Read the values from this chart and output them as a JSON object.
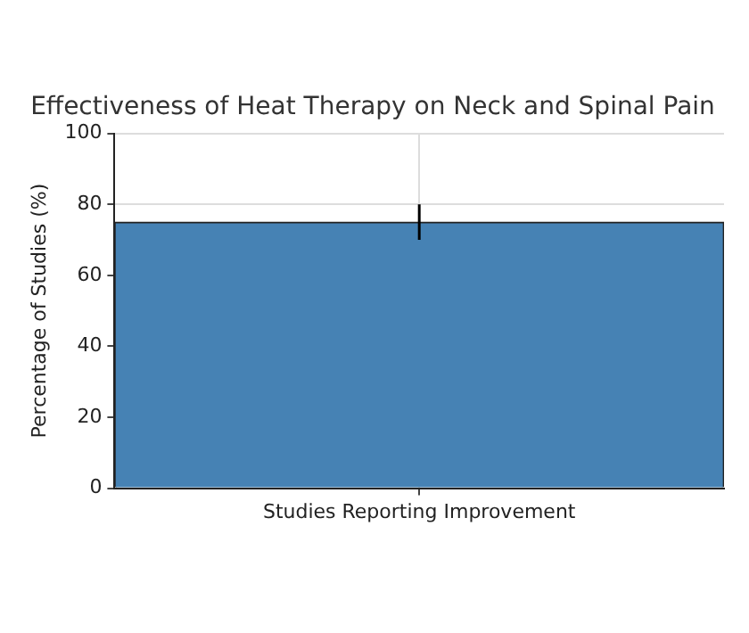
{
  "chart_data": {
    "type": "bar",
    "title": "Effectiveness of Heat Therapy on Neck and Spinal Pain",
    "ylabel": "Percentage of Studies (%)",
    "categories": [
      "Studies Reporting Improvement"
    ],
    "values": [
      75
    ],
    "errors": [
      5
    ],
    "color": "#4682b4",
    "ylim": [
      0,
      100
    ],
    "yticks": [
      0,
      20,
      40,
      60,
      80,
      100
    ],
    "grid": true
  }
}
